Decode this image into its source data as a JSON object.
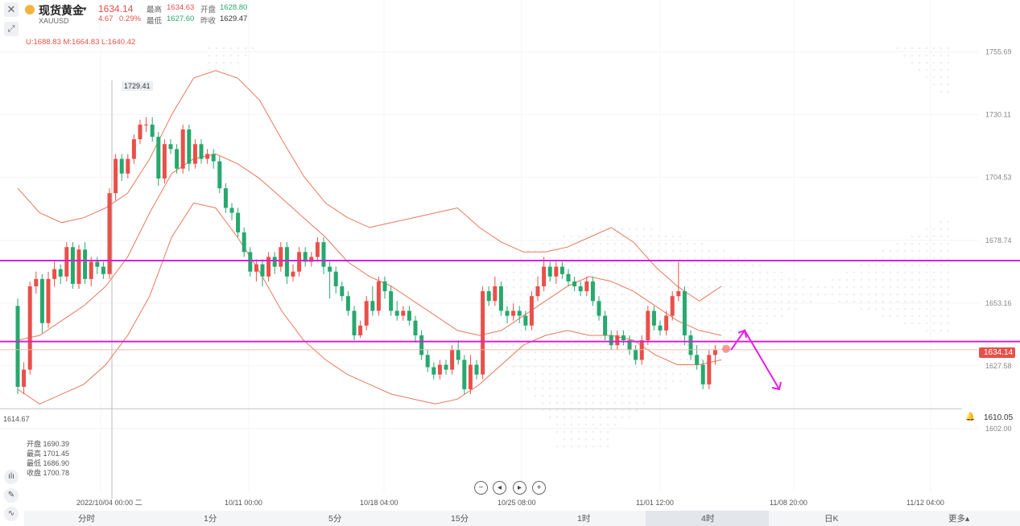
{
  "header": {
    "title": "现货黄金",
    "symbol": "XAUUSD",
    "price": "1634.14",
    "change": "4.67",
    "change_pct": "0.29%",
    "high_label": "最高",
    "high": "1634.63",
    "open_label": "开盘",
    "open": "1628.80",
    "low_label": "最低",
    "low": "1627.60",
    "prev_label": "昨收",
    "prev": "1629.47"
  },
  "boll": "U:1688.83  M:1664.83  L:1640.42",
  "ohlc_box": {
    "open": "开盘 1690.39",
    "high": "最高 1701.45",
    "low": "最低 1686.90",
    "close": "收盘 1700.78"
  },
  "markers": {
    "high_tag": "1729.41",
    "low_tag": "1614.67",
    "last_price": "1634.14",
    "alert_price": "1610.05"
  },
  "colors": {
    "up": "#e8504a",
    "down": "#27a86e",
    "boll": "#e8785a",
    "resistance": "#d620d6",
    "forecast": "#e61ee6"
  },
  "timeframes": [
    "分时",
    "1分",
    "5分",
    "15分",
    "1时",
    "4时",
    "日K",
    "更多▴"
  ],
  "active_timeframe": "4时",
  "chart_data": {
    "type": "candlestick",
    "title": "现货黄金 XAUUSD 4时",
    "x_tick_labels": [
      "2022/10/04 00:00 二",
      "10/11 00:00",
      "10/18 04:00",
      "10/25 08:00",
      "11/01 12:00",
      "11/08 20:00",
      "11/12 04:00"
    ],
    "y_tick_labels": [
      "1755.69",
      "1730.11",
      "1704.53",
      "1678.74",
      "1653.16",
      "1627.58",
      "1602.00"
    ],
    "ylim": [
      1597,
      1765
    ],
    "horizontal_lines": [
      {
        "name": "resistance",
        "value": 1670.5
      },
      {
        "name": "support",
        "value": 1637.5
      },
      {
        "name": "alert",
        "value": 1610.05
      },
      {
        "name": "last_price",
        "value": 1634.14
      }
    ],
    "key_levels": {
      "high": 1729.41,
      "low": 1614.67
    },
    "candles": [
      [
        1652,
        1619,
        1655,
        1616
      ],
      [
        1619,
        1626,
        1629,
        1616
      ],
      [
        1626,
        1660,
        1662,
        1624
      ],
      [
        1660,
        1663,
        1666,
        1657
      ],
      [
        1663,
        1645,
        1665,
        1641
      ],
      [
        1645,
        1663,
        1666,
        1643
      ],
      [
        1663,
        1667,
        1670,
        1660
      ],
      [
        1667,
        1664,
        1669,
        1661
      ],
      [
        1664,
        1676,
        1678,
        1662
      ],
      [
        1676,
        1661,
        1678,
        1659
      ],
      [
        1661,
        1675,
        1677,
        1659
      ],
      [
        1675,
        1663,
        1678,
        1661
      ],
      [
        1663,
        1670,
        1672,
        1660
      ],
      [
        1670,
        1668,
        1672,
        1665
      ],
      [
        1668,
        1665,
        1670,
        1663
      ],
      [
        1665,
        1698,
        1700,
        1663
      ],
      [
        1698,
        1712,
        1714,
        1695
      ],
      [
        1712,
        1706,
        1714,
        1703
      ],
      [
        1706,
        1712,
        1714,
        1704
      ],
      [
        1712,
        1720,
        1722,
        1710
      ],
      [
        1720,
        1726,
        1728,
        1718
      ],
      [
        1726,
        1726,
        1729,
        1723
      ],
      [
        1726,
        1721,
        1729,
        1719
      ],
      [
        1721,
        1704,
        1723,
        1701
      ],
      [
        1704,
        1718,
        1720,
        1702
      ],
      [
        1718,
        1716,
        1720,
        1714
      ],
      [
        1716,
        1708,
        1718,
        1706
      ],
      [
        1708,
        1724,
        1726,
        1706
      ],
      [
        1724,
        1710,
        1726,
        1707
      ],
      [
        1710,
        1718,
        1720,
        1708
      ],
      [
        1718,
        1712,
        1720,
        1710
      ],
      [
        1712,
        1714,
        1716,
        1710
      ],
      [
        1714,
        1711,
        1716,
        1708
      ],
      [
        1711,
        1700,
        1713,
        1698
      ],
      [
        1700,
        1692,
        1702,
        1690
      ],
      [
        1692,
        1690,
        1694,
        1687
      ],
      [
        1690,
        1682,
        1692,
        1680
      ],
      [
        1682,
        1674,
        1684,
        1672
      ],
      [
        1674,
        1666,
        1676,
        1664
      ],
      [
        1666,
        1669,
        1671,
        1662
      ],
      [
        1669,
        1664,
        1671,
        1660
      ],
      [
        1664,
        1672,
        1674,
        1662
      ],
      [
        1672,
        1668,
        1674,
        1665
      ],
      [
        1668,
        1676,
        1678,
        1666
      ],
      [
        1676,
        1664,
        1678,
        1661
      ],
      [
        1664,
        1666,
        1669,
        1662
      ],
      [
        1666,
        1674,
        1676,
        1664
      ],
      [
        1674,
        1670,
        1676,
        1668
      ],
      [
        1670,
        1672,
        1674,
        1668
      ],
      [
        1672,
        1678,
        1680,
        1670
      ],
      [
        1678,
        1668,
        1680,
        1665
      ],
      [
        1668,
        1666,
        1670,
        1655
      ],
      [
        1666,
        1660,
        1668,
        1657
      ],
      [
        1660,
        1656,
        1662,
        1654
      ],
      [
        1656,
        1650,
        1658,
        1648
      ],
      [
        1650,
        1640,
        1652,
        1638
      ],
      [
        1640,
        1644,
        1646,
        1639
      ],
      [
        1644,
        1654,
        1656,
        1642
      ],
      [
        1654,
        1650,
        1660,
        1648
      ],
      [
        1650,
        1662,
        1664,
        1648
      ],
      [
        1662,
        1658,
        1664,
        1655
      ],
      [
        1658,
        1650,
        1660,
        1648
      ],
      [
        1650,
        1648,
        1654,
        1646
      ],
      [
        1648,
        1650,
        1652,
        1646
      ],
      [
        1650,
        1646,
        1652,
        1644
      ],
      [
        1646,
        1640,
        1648,
        1637
      ],
      [
        1640,
        1632,
        1642,
        1630
      ],
      [
        1632,
        1627,
        1634,
        1625
      ],
      [
        1627,
        1624,
        1629,
        1622
      ],
      [
        1624,
        1628,
        1630,
        1622
      ],
      [
        1628,
        1626,
        1630,
        1624
      ],
      [
        1626,
        1634,
        1636,
        1624
      ],
      [
        1634,
        1630,
        1638,
        1628
      ],
      [
        1630,
        1618,
        1632,
        1616
      ],
      [
        1618,
        1628,
        1632,
        1616
      ],
      [
        1628,
        1624,
        1630,
        1622
      ],
      [
        1624,
        1658,
        1660,
        1622
      ],
      [
        1658,
        1654,
        1660,
        1652
      ],
      [
        1654,
        1660,
        1664,
        1652
      ],
      [
        1660,
        1650,
        1662,
        1648
      ],
      [
        1650,
        1648,
        1652,
        1645
      ],
      [
        1648,
        1650,
        1653,
        1646
      ],
      [
        1650,
        1648,
        1652,
        1645
      ],
      [
        1648,
        1644,
        1650,
        1642
      ],
      [
        1644,
        1656,
        1658,
        1642
      ],
      [
        1656,
        1660,
        1664,
        1654
      ],
      [
        1660,
        1668,
        1672,
        1658
      ],
      [
        1668,
        1664,
        1670,
        1662
      ],
      [
        1664,
        1668,
        1670,
        1661
      ],
      [
        1668,
        1665,
        1670,
        1663
      ],
      [
        1665,
        1662,
        1667,
        1660
      ],
      [
        1662,
        1660,
        1664,
        1658
      ],
      [
        1660,
        1658,
        1662,
        1656
      ],
      [
        1658,
        1662,
        1664,
        1656
      ],
      [
        1662,
        1654,
        1664,
        1652
      ],
      [
        1654,
        1648,
        1656,
        1646
      ],
      [
        1648,
        1640,
        1650,
        1638
      ],
      [
        1640,
        1636,
        1642,
        1634
      ],
      [
        1636,
        1640,
        1642,
        1634
      ],
      [
        1640,
        1638,
        1642,
        1636
      ],
      [
        1638,
        1634,
        1640,
        1632
      ],
      [
        1634,
        1630,
        1636,
        1628
      ],
      [
        1630,
        1638,
        1640,
        1628
      ],
      [
        1638,
        1650,
        1652,
        1636
      ],
      [
        1650,
        1644,
        1652,
        1642
      ],
      [
        1644,
        1642,
        1646,
        1640
      ],
      [
        1642,
        1648,
        1650,
        1640
      ],
      [
        1648,
        1656,
        1658,
        1646
      ],
      [
        1656,
        1658,
        1670,
        1654
      ],
      [
        1658,
        1640,
        1660,
        1636
      ],
      [
        1640,
        1632,
        1642,
        1630
      ],
      [
        1632,
        1628,
        1636,
        1626
      ],
      [
        1628,
        1620,
        1630,
        1618
      ],
      [
        1620,
        1632,
        1634,
        1618
      ],
      [
        1632,
        1634,
        1636,
        1628
      ]
    ],
    "boll_upper": [
      1700,
      1690,
      1686,
      1688,
      1692,
      1698,
      1712,
      1730,
      1745,
      1748,
      1745,
      1736,
      1720,
      1705,
      1694,
      1688,
      1684,
      1686,
      1688,
      1690,
      1692,
      1684,
      1678,
      1674,
      1674,
      1676,
      1680,
      1684,
      1678,
      1668,
      1660,
      1654,
      1660
    ],
    "boll_middle": [
      1638,
      1640,
      1646,
      1652,
      1660,
      1672,
      1690,
      1706,
      1712,
      1714,
      1710,
      1704,
      1696,
      1688,
      1680,
      1670,
      1664,
      1660,
      1654,
      1648,
      1642,
      1640,
      1642,
      1648,
      1654,
      1660,
      1664,
      1662,
      1658,
      1652,
      1646,
      1642,
      1640
    ],
    "boll_lower": [
      1618,
      1612,
      1616,
      1620,
      1628,
      1640,
      1656,
      1680,
      1694,
      1692,
      1680,
      1666,
      1650,
      1638,
      1630,
      1624,
      1620,
      1616,
      1614,
      1612,
      1614,
      1620,
      1628,
      1636,
      1640,
      1642,
      1640,
      1640,
      1638,
      1632,
      1628,
      1628,
      1630
    ],
    "forecast": [
      [
        1634,
        1642
      ],
      [
        1642,
        1618
      ]
    ]
  }
}
